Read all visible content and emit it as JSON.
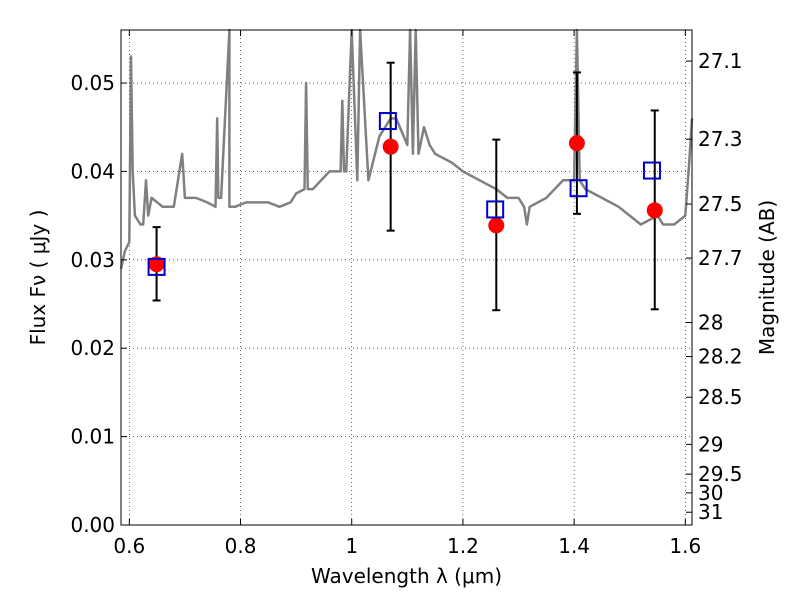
{
  "chart_data": {
    "type": "scatter",
    "xlabel": "Wavelength  λ (μm)",
    "ylabel": "Flux  Fν ( μJy )",
    "ylabel_right": "Magnitude (AB)",
    "xlim": [
      0.585,
      1.612
    ],
    "ylim": [
      0.0,
      0.056
    ],
    "x_ticks": [
      0.6,
      0.8,
      1.0,
      1.2,
      1.4,
      1.6
    ],
    "x_tick_labels": [
      "0.6",
      "0.8",
      "1",
      "1.2",
      "1.4",
      "1.6"
    ],
    "y_ticks": [
      0.0,
      0.01,
      0.02,
      0.03,
      0.04,
      0.05
    ],
    "y_tick_labels": [
      "0.00",
      "0.01",
      "0.02",
      "0.03",
      "0.04",
      "0.05"
    ],
    "right_ticks": [
      "27.1",
      "27.3",
      "27.5",
      "27.7",
      "28",
      "28.2",
      "28.5",
      "29",
      "29.5",
      "30",
      "31"
    ],
    "grid": true,
    "colors": {
      "model": "#808080",
      "observed": "#ff0000",
      "model_band": "#0000cc",
      "errorbar": "#000000"
    },
    "series": [
      {
        "kind": "line",
        "x": [
          0.585,
          0.592,
          0.6,
          0.603,
          0.606,
          0.61,
          0.62,
          0.625,
          0.63,
          0.634,
          0.64,
          0.66,
          0.68,
          0.695,
          0.7,
          0.72,
          0.74,
          0.755,
          0.758,
          0.76,
          0.765,
          0.78,
          0.78,
          0.79,
          0.81,
          0.83,
          0.85,
          0.87,
          0.89,
          0.9,
          0.915,
          0.918,
          0.921,
          0.93,
          0.96,
          0.98,
          0.983,
          0.986,
          0.99,
          1.0,
          1.01,
          1.015,
          1.03,
          1.05,
          1.07,
          1.08,
          1.1,
          1.105,
          1.11,
          1.115,
          1.12,
          1.13,
          1.14,
          1.15,
          1.18,
          1.2,
          1.23,
          1.26,
          1.28,
          1.3,
          1.31,
          1.315,
          1.32,
          1.35,
          1.38,
          1.4,
          1.405,
          1.41,
          1.42,
          1.45,
          1.48,
          1.5,
          1.52,
          1.55,
          1.56,
          1.58,
          1.6,
          1.607,
          1.612
        ],
        "y": [
          0.029,
          0.031,
          0.032,
          0.053,
          0.04,
          0.035,
          0.034,
          0.034,
          0.039,
          0.035,
          0.037,
          0.036,
          0.036,
          0.042,
          0.037,
          0.037,
          0.0365,
          0.036,
          0.046,
          0.037,
          0.037,
          0.056,
          0.036,
          0.036,
          0.0365,
          0.0365,
          0.0365,
          0.036,
          0.0365,
          0.0375,
          0.038,
          0.05,
          0.038,
          0.038,
          0.04,
          0.04,
          0.048,
          0.04,
          0.04,
          0.056,
          0.039,
          0.056,
          0.039,
          0.044,
          0.046,
          0.046,
          0.043,
          0.056,
          0.042,
          0.056,
          0.042,
          0.045,
          0.043,
          0.042,
          0.041,
          0.04,
          0.039,
          0.038,
          0.037,
          0.037,
          0.036,
          0.034,
          0.036,
          0.037,
          0.039,
          0.039,
          0.056,
          0.039,
          0.038,
          0.037,
          0.036,
          0.035,
          0.034,
          0.035,
          0.034,
          0.034,
          0.035,
          0.041,
          0.046
        ]
      },
      {
        "kind": "points",
        "marker": "circle",
        "x": [
          0.649,
          1.07,
          1.26,
          1.405,
          1.545
        ],
        "y": [
          0.0295,
          0.0428,
          0.0339,
          0.0432,
          0.0356
        ],
        "yerr_low": [
          0.0254,
          0.0333,
          0.0243,
          0.0352,
          0.0244
        ],
        "yerr_high": [
          0.0337,
          0.0523,
          0.0436,
          0.0512,
          0.0469
        ]
      },
      {
        "kind": "points",
        "marker": "square",
        "x": [
          0.649,
          1.065,
          1.258,
          1.408,
          1.54
        ],
        "y": [
          0.0292,
          0.0457,
          0.0357,
          0.0381,
          0.0401
        ]
      }
    ]
  }
}
